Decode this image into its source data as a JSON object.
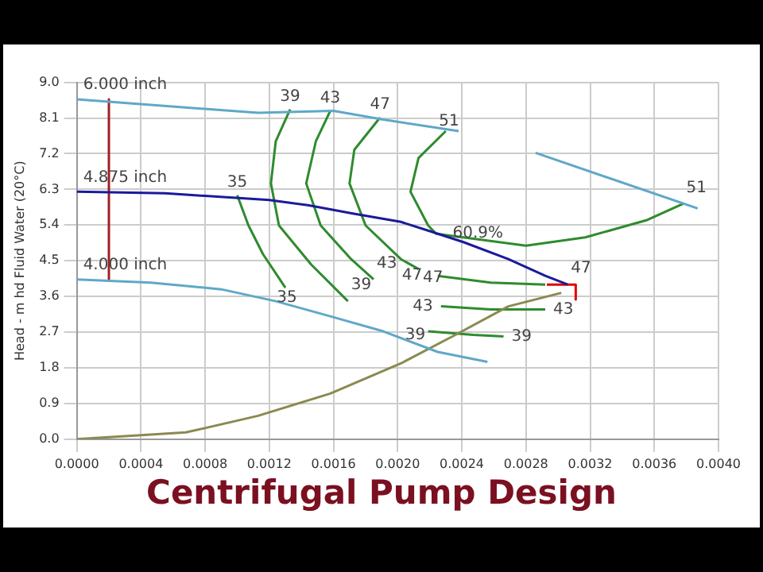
{
  "chart_data": {
    "type": "line",
    "title": "Centrifugal Pump Design",
    "ylabel": "Head - m hd Fluid Water (20°C)",
    "marker": "none",
    "grid": true,
    "xlim": [
      0,
      0.004
    ],
    "xticks": [
      {
        "value": 0,
        "label": "0.0000"
      },
      {
        "value": 0.0004,
        "label": "0.0004"
      },
      {
        "value": 0.0008,
        "label": "0.0008"
      },
      {
        "value": 0.0012,
        "label": "0.0012"
      },
      {
        "value": 0.0016,
        "label": "0.0016"
      },
      {
        "value": 0.002,
        "label": "0.0020"
      },
      {
        "value": 0.0024,
        "label": "0.0024"
      },
      {
        "value": 0.0028,
        "label": "0.0028"
      },
      {
        "value": 0.0032,
        "label": "0.0032"
      },
      {
        "value": 0.0036,
        "label": "0.0036"
      },
      {
        "value": 0.004,
        "label": "0.0040"
      }
    ],
    "ylim": [
      0,
      9
    ],
    "yticks": [
      {
        "value": 0,
        "label": "0.0"
      },
      {
        "value": 0.9,
        "label": "0.9"
      },
      {
        "value": 1.8,
        "label": "1.8"
      },
      {
        "value": 2.7,
        "label": "2.7"
      },
      {
        "value": 3.6,
        "label": "3.6"
      },
      {
        "value": 4.5,
        "label": "4.5"
      },
      {
        "value": 5.4,
        "label": "5.4"
      },
      {
        "value": 6.3,
        "label": "6.3"
      },
      {
        "value": 7.2,
        "label": "7.2"
      },
      {
        "value": 8.1,
        "label": "8.1"
      },
      {
        "value": 9,
        "label": "9.0"
      }
    ],
    "series": [
      {
        "color": "#5fa8c8",
        "x": [
          0,
          0.00113,
          0.0016,
          0.00191,
          0.00238,
          0.0026,
          0.00286,
          0.00387
        ],
        "values": [
          8.57,
          8.23,
          8.28,
          8.06,
          7.77,
          null,
          7.22,
          5.82
        ]
      },
      {
        "color": "#1a1a9a",
        "x": [
          0,
          0.00055,
          0.0012,
          0.00144,
          0.00172,
          0.00202,
          0.00219,
          0.00241,
          0.00269,
          0.00292,
          0.00306
        ],
        "values": [
          6.24,
          6.2,
          6.03,
          5.9,
          5.69,
          5.48,
          5.26,
          4.97,
          4.54,
          4.12,
          3.9
        ]
      },
      {
        "color": "#5fa8c8",
        "x": [
          0,
          0.00046,
          0.0009,
          0.00124,
          0.00158,
          0.00191,
          0.00225,
          0.00256
        ],
        "values": [
          4.03,
          3.95,
          3.78,
          3.48,
          3.1,
          2.72,
          2.2,
          1.95
        ]
      },
      {
        "color": "#8a8a50",
        "x": [
          0,
          0.00068,
          0.00113,
          0.00158,
          0.00202,
          0.00236,
          0.00269,
          0.00302
        ],
        "values": [
          0,
          0.17,
          0.59,
          1.15,
          1.91,
          2.63,
          3.35,
          3.69
        ]
      },
      {
        "color": "#a02020",
        "x": [
          0.0002,
          0.0002
        ],
        "values": [
          8.57,
          4.03
        ]
      },
      {
        "color": "#2e8b2e",
        "x": [
          0.001,
          0.00107,
          0.00116,
          0.0013
        ],
        "values": [
          6.15,
          5.39,
          4.67,
          3.82
        ]
      },
      {
        "color": "#2e8b2e",
        "x": [
          0.00133,
          0.00124,
          0.00121,
          0.00126,
          0.00146,
          0.00169
        ],
        "values": [
          8.32,
          7.51,
          6.45,
          5.39,
          4.41,
          3.48
        ]
      },
      {
        "color": "#2e8b2e",
        "x": [
          0.00158,
          0.00149,
          0.00143,
          0.00152,
          0.00171,
          0.00185
        ],
        "values": [
          8.28,
          7.51,
          6.45,
          5.39,
          4.54,
          4.03
        ]
      },
      {
        "color": "#2e8b2e",
        "x": [
          0.00189,
          0.00173,
          0.0017,
          0.0018,
          0.00202,
          0.00213
        ],
        "values": [
          8.11,
          7.3,
          6.45,
          5.39,
          4.54,
          4.29
        ]
      },
      {
        "color": "#2e8b2e",
        "x": [
          0.0023,
          0.00213,
          0.00208,
          0.00219,
          0.00224,
          0.0028,
          0.00317,
          0.00355,
          0.00378
        ],
        "values": [
          7.77,
          7.09,
          6.24,
          5.39,
          5.18,
          4.88,
          5.09,
          5.52,
          5.94
        ]
      },
      {
        "color": "#2e8b2e",
        "x": [
          0.00225,
          0.00258,
          0.00292
        ],
        "values": [
          4.12,
          3.95,
          3.9
        ]
      },
      {
        "color": "#2e8b2e",
        "x": [
          0.00227,
          0.00258,
          0.00292
        ],
        "values": [
          3.35,
          3.27,
          3.27
        ]
      },
      {
        "color": "#2e8b2e",
        "x": [
          0.00219,
          0.00247,
          0.00266
        ],
        "values": [
          2.72,
          2.63,
          2.59
        ]
      },
      {
        "color": "#e00000",
        "x": [
          0.00293,
          0.00311,
          0.00311
        ],
        "values": [
          3.9,
          3.9,
          3.52
        ]
      }
    ],
    "annotations": [
      {
        "text": "6.000 inch",
        "x": 0,
        "y": 8.57
      },
      {
        "text": "4.875 inch",
        "x": 0,
        "y": 6.24
      },
      {
        "text": "4.000 inch",
        "x": 0,
        "y": 4.03
      },
      {
        "text": "35",
        "x": 0.001,
        "y": 6.15
      },
      {
        "text": "35",
        "x": 0.00131,
        "y": 3.57
      },
      {
        "text": "39",
        "x": 0.00133,
        "y": 8.32
      },
      {
        "text": "39",
        "x": 0.00169,
        "y": 3.48
      },
      {
        "text": "43",
        "x": 0.00158,
        "y": 8.28
      },
      {
        "text": "43",
        "x": 0.00185,
        "y": 4.03
      },
      {
        "text": "47",
        "x": 0.00189,
        "y": 8.11
      },
      {
        "text": "47",
        "x": 0.00209,
        "y": 4.12
      },
      {
        "text": "51",
        "x": 0.00232,
        "y": 8.02
      },
      {
        "text": "60.9%",
        "x": 0.0025,
        "y": 5.18
      },
      {
        "text": "51",
        "x": 0.00378,
        "y": 5.94
      },
      {
        "text": "47",
        "x": 0.00222,
        "y": 4.07
      },
      {
        "text": "47",
        "x": 0.00306,
        "y": 3.9
      },
      {
        "text": "43",
        "x": 0.00227,
        "y": 3.35
      },
      {
        "text": "43",
        "x": 0.00292,
        "y": 3.27
      },
      {
        "text": "39",
        "x": 0.00211,
        "y": 2.63
      },
      {
        "text": "39",
        "x": 0.00266,
        "y": 2.59
      }
    ]
  }
}
